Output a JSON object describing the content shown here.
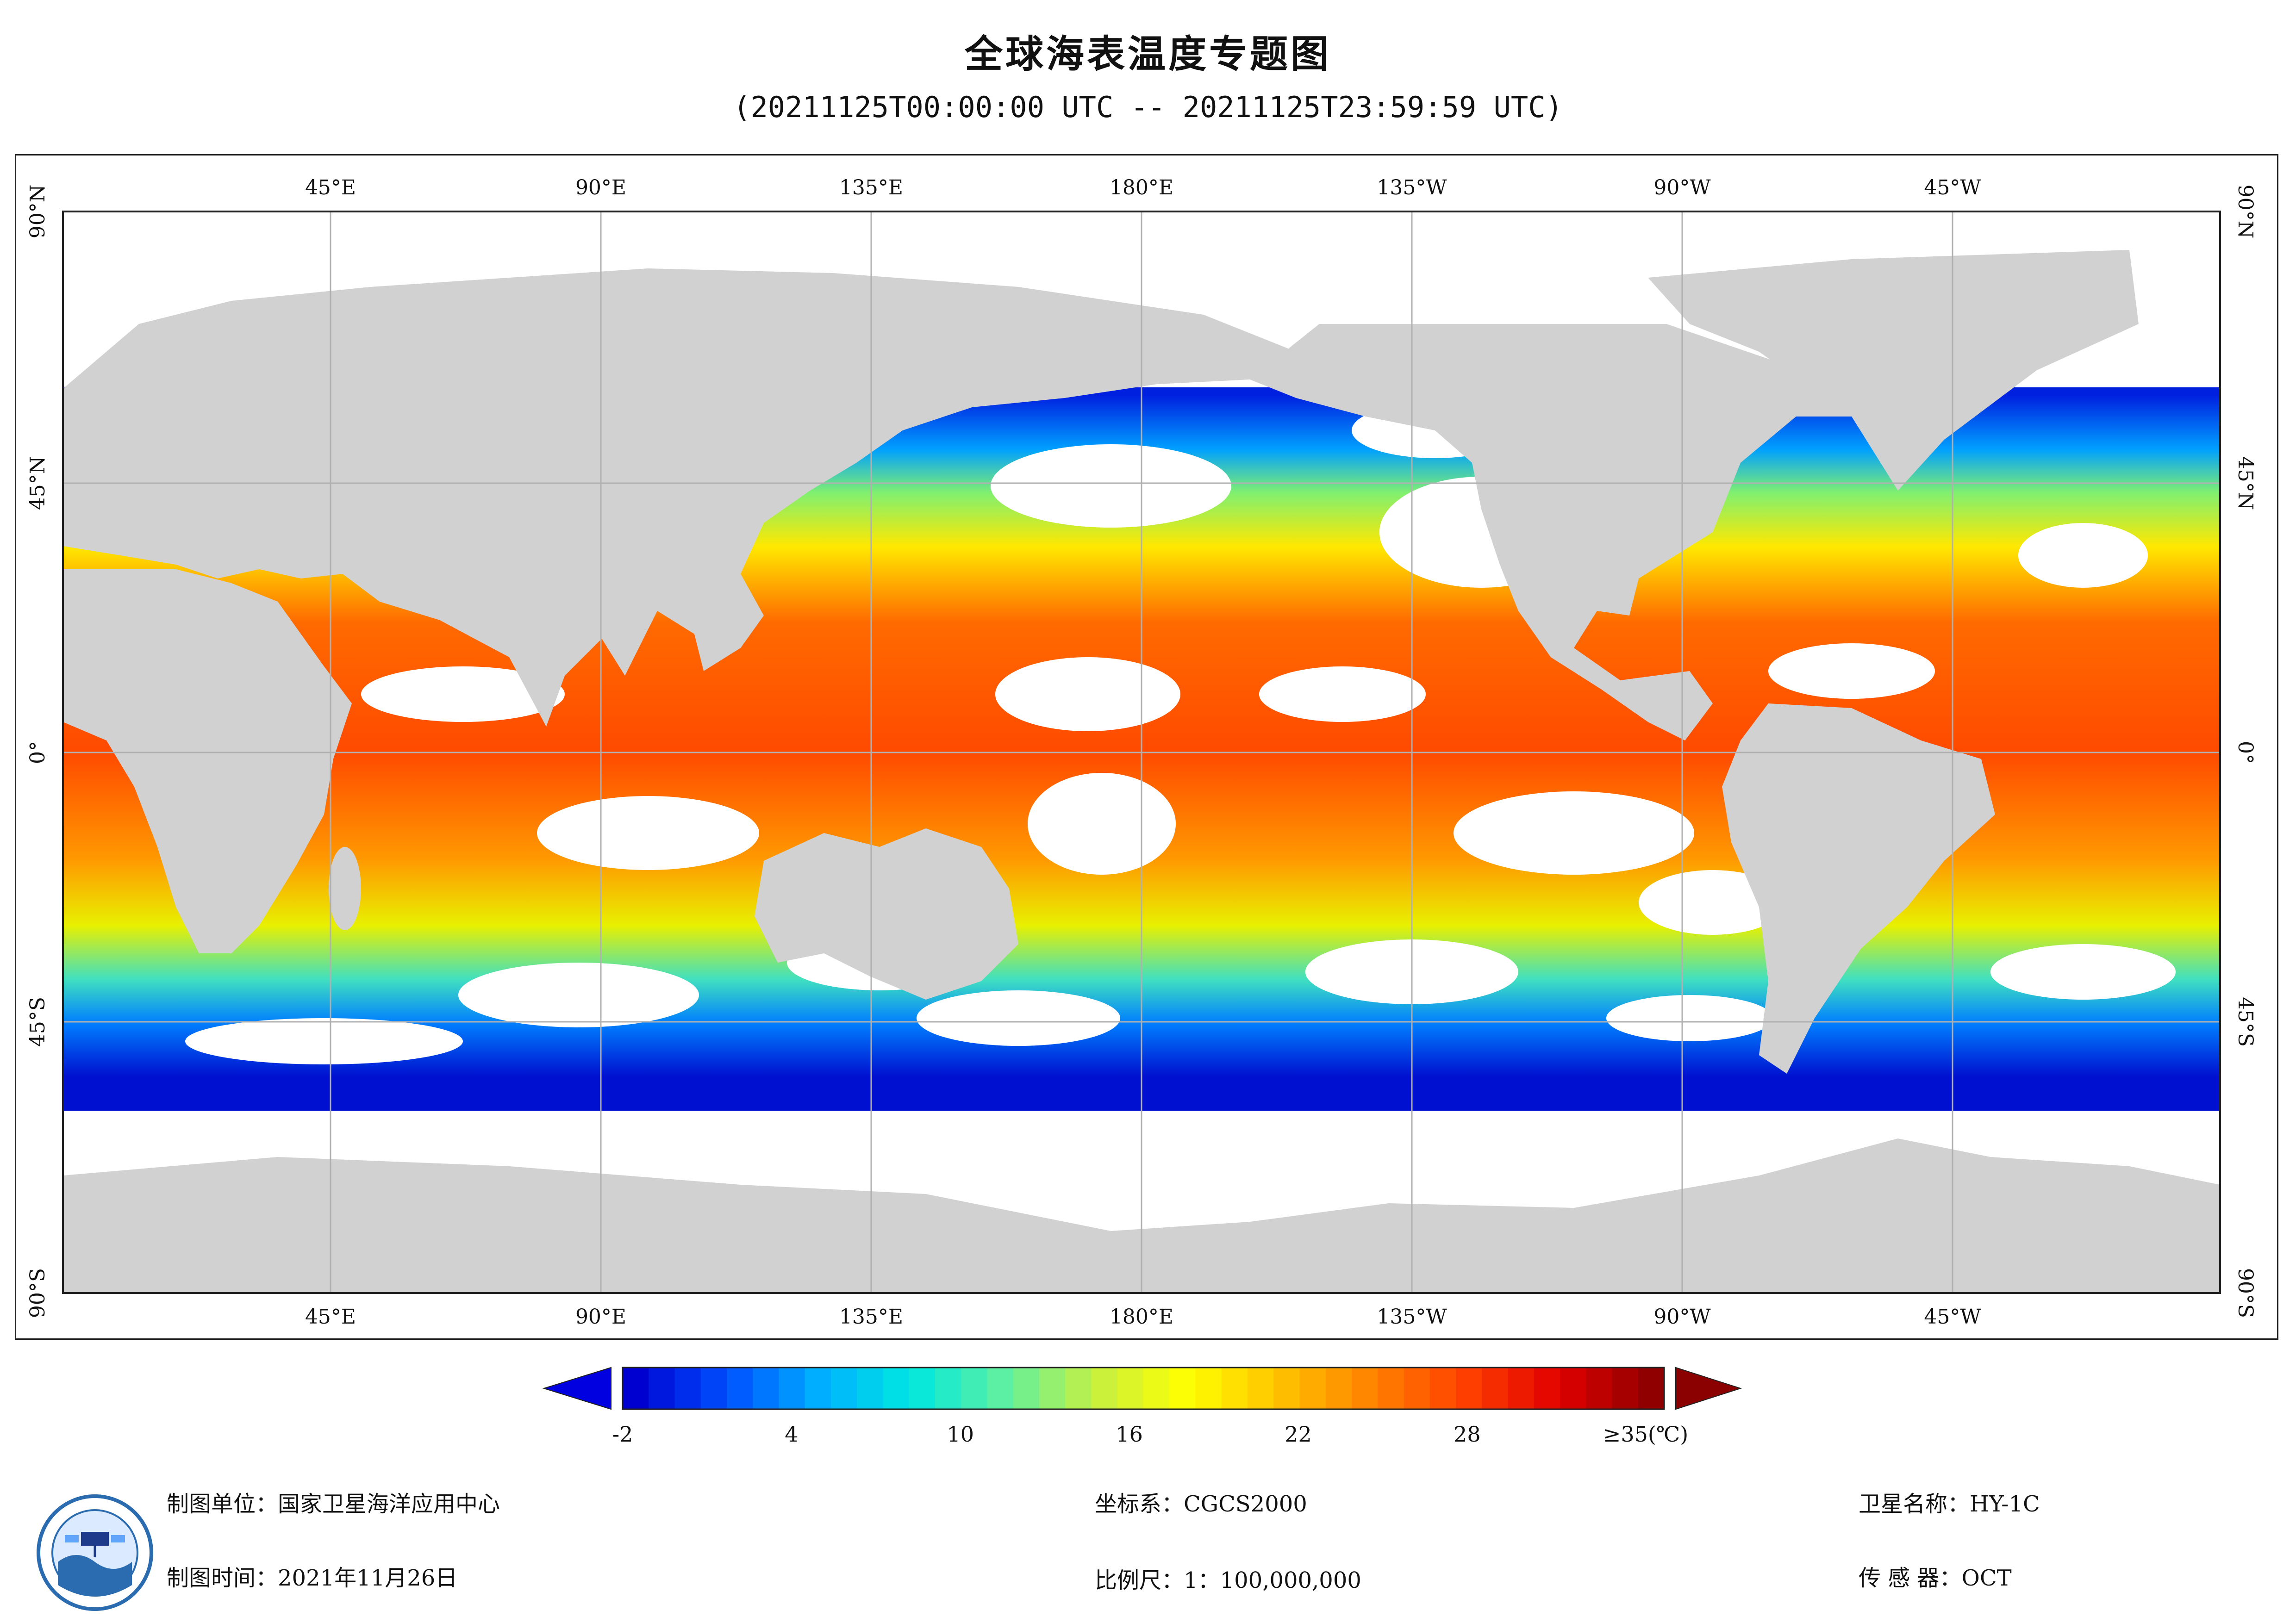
{
  "title": "全球海表温度专题图",
  "subtitle": "(20211125T00:00:00 UTC -- 20211125T23:59:59 UTC)",
  "axes": {
    "lon_labels": [
      "45°E",
      "90°E",
      "135°E",
      "180°E",
      "135°W",
      "90°W",
      "45°W"
    ],
    "lat_labels": [
      "90°N",
      "45°N",
      "0°",
      "45°S",
      "90°S"
    ]
  },
  "colorbar": {
    "tick_labels": [
      "-2",
      "4",
      "10",
      "16",
      "22",
      "28",
      "≥35(℃)"
    ],
    "ticks": [
      -2,
      4,
      10,
      16,
      22,
      28,
      35
    ],
    "min": -2,
    "max": 35,
    "colors": [
      "#0000d0",
      "#0050ff",
      "#00b0ff",
      "#00e8e0",
      "#60f0a0",
      "#c8f040",
      "#ffff00",
      "#ffc000",
      "#ff8000",
      "#ff4000",
      "#e00000",
      "#900000"
    ]
  },
  "footer": {
    "unit": "制图单位：国家卫星海洋应用中心",
    "time": "制图时间：2021年11月26日",
    "crs": "坐标系：CGCS2000",
    "scale": "比例尺：1：100,000,000",
    "satellite": "卫星名称：HY-1C",
    "sensor": "传 感 器：OCT"
  },
  "colors": {
    "land": "#d1d1d1",
    "cloud": "#ffffff",
    "grid": "#b0b0b0",
    "frame": "#222222"
  }
}
